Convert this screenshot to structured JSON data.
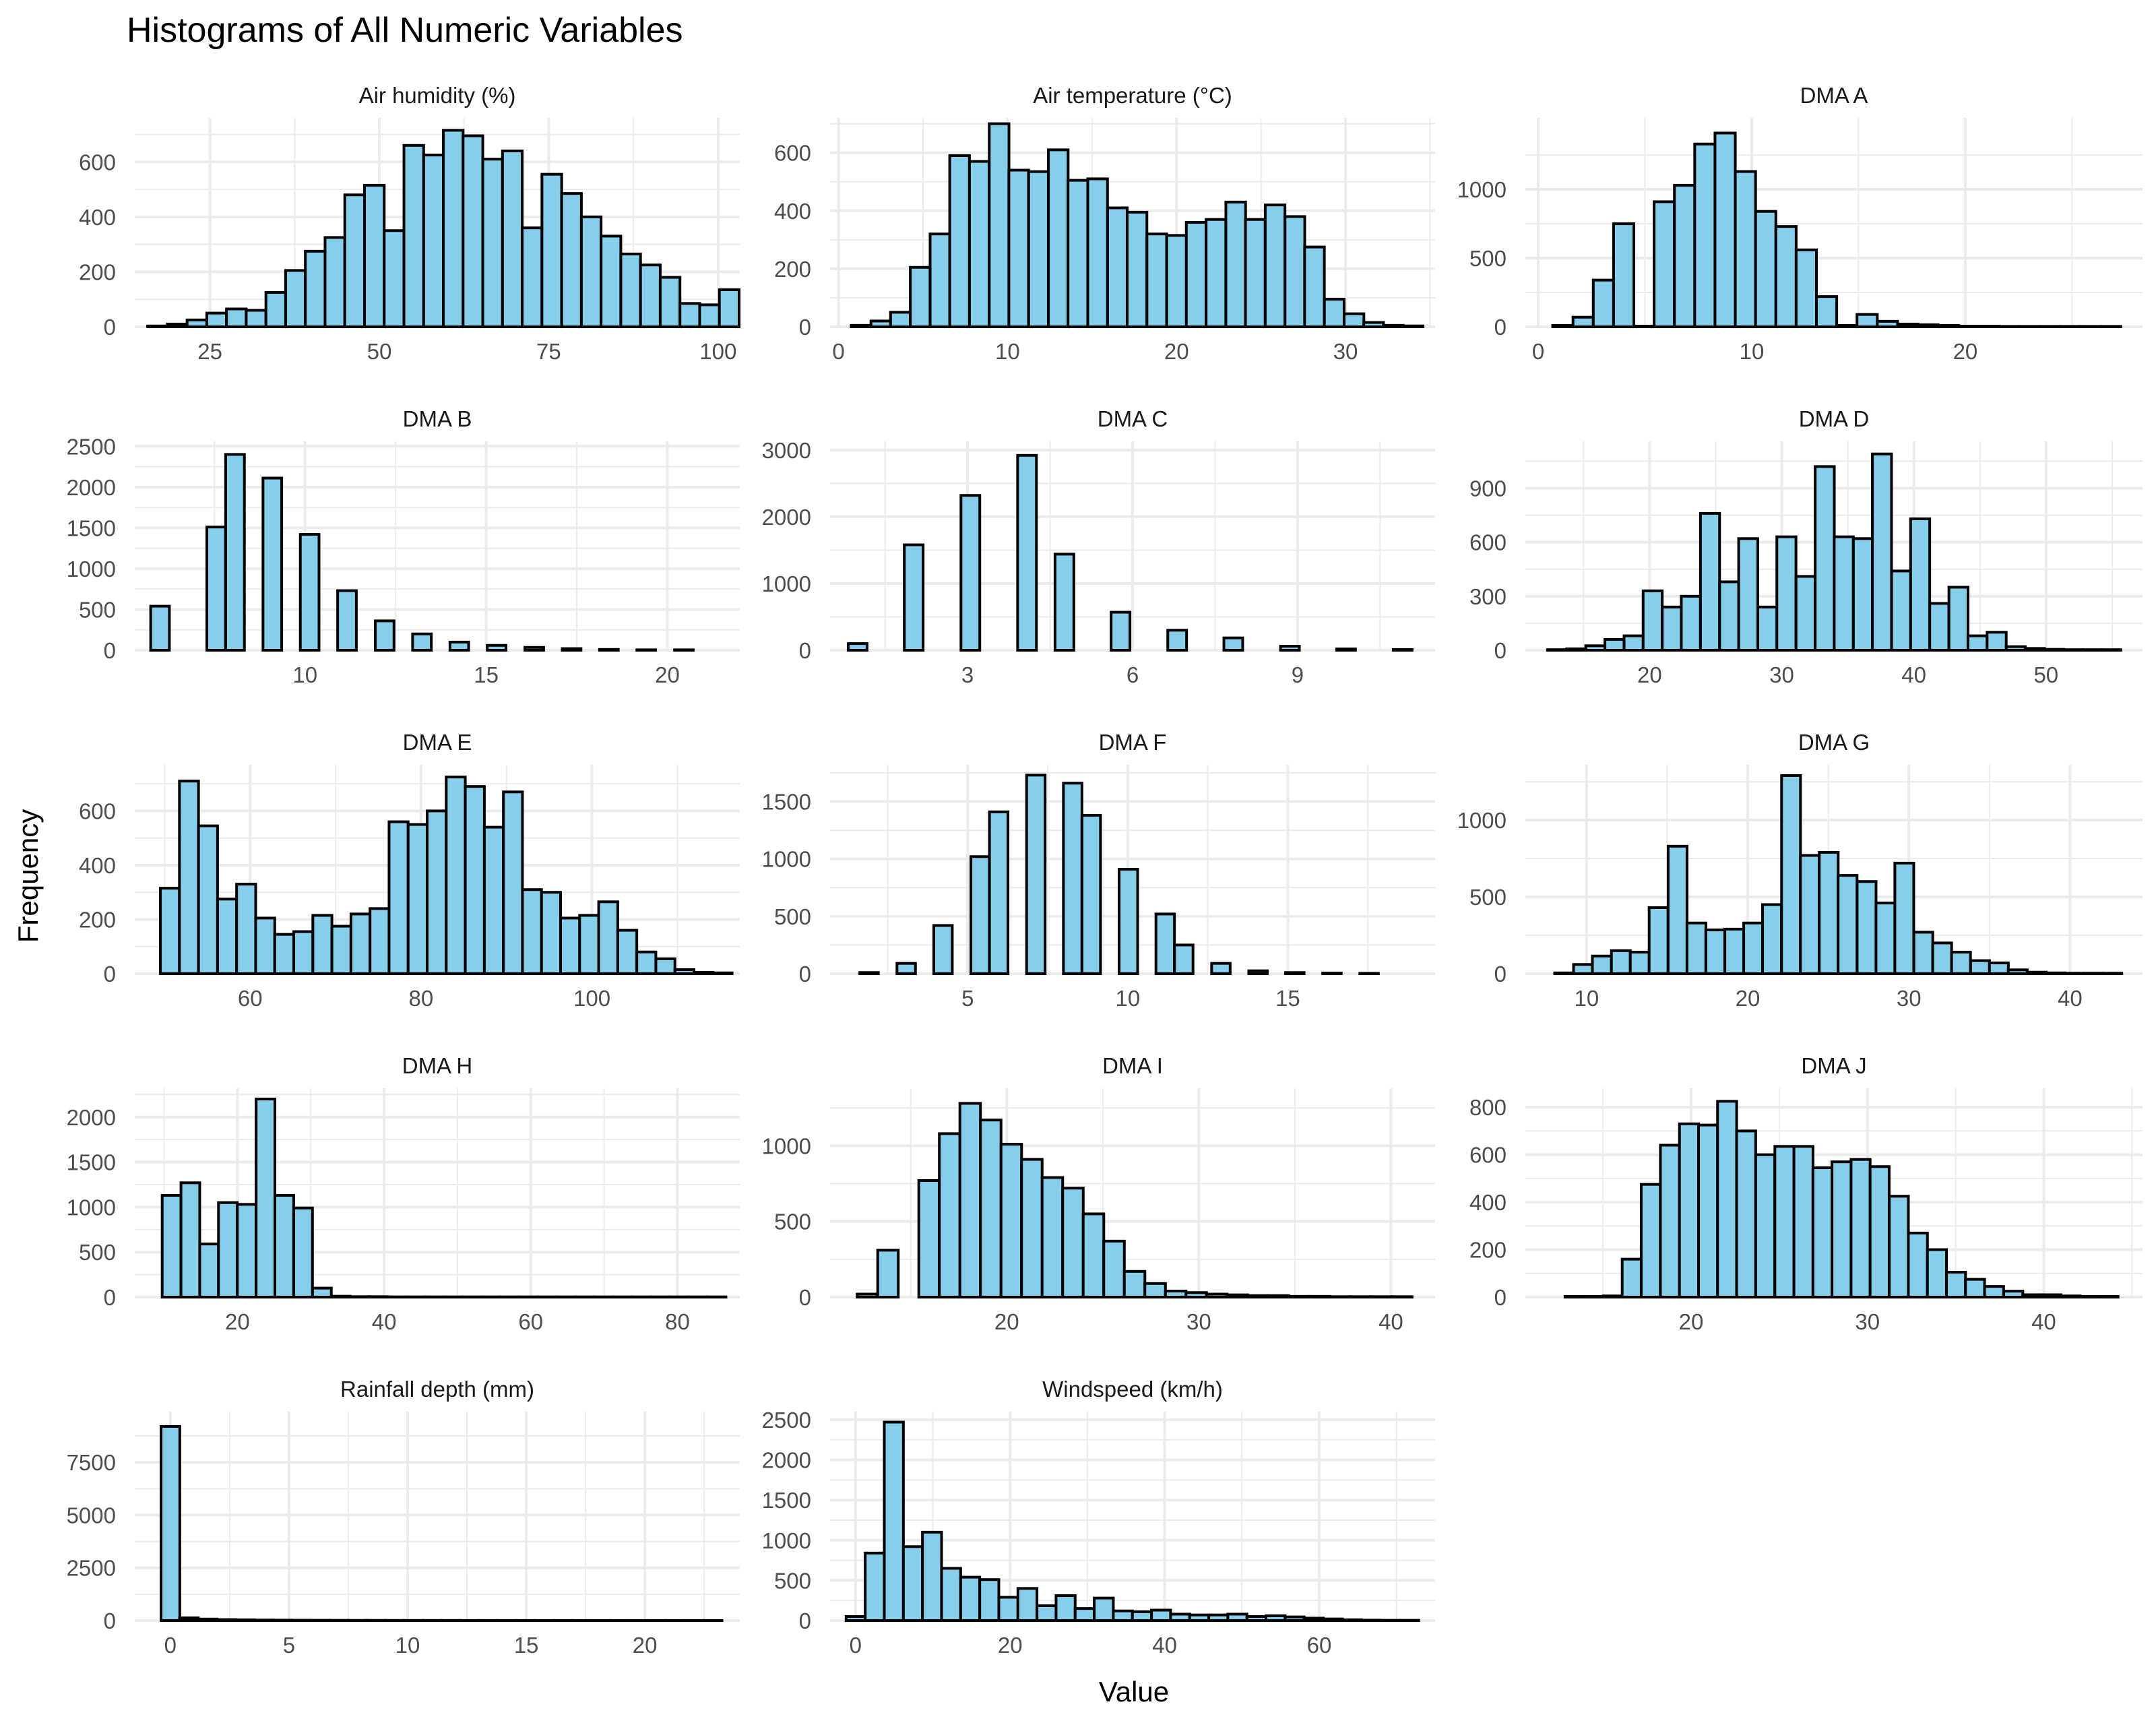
{
  "figure": {
    "title": "Histograms of All Numeric Variables",
    "xlabel": "Value",
    "ylabel": "Frequency",
    "colors": {
      "bar_fill": "#87CEEB",
      "bar_stroke": "#000000",
      "grid": "#EBEBEB"
    }
  },
  "chart_data": [
    {
      "type": "bar",
      "title": "Air humidity (%)",
      "xlim": [
        13.9,
        103.2
      ],
      "ylim": [
        0,
        760
      ],
      "x_ticks": [
        25,
        50,
        75,
        100
      ],
      "y_ticks": [
        0,
        200,
        400,
        600
      ],
      "bin_width": 2.91,
      "bin_starts": [
        15.8,
        18.71,
        21.62,
        24.53,
        27.44,
        30.35,
        33.26,
        36.17,
        39.08,
        41.99,
        44.9,
        47.81,
        50.72,
        53.63,
        56.54,
        59.45,
        62.36,
        65.27,
        68.18,
        71.09,
        74.0,
        76.91,
        79.82,
        82.73,
        85.64,
        88.55,
        91.46,
        94.37,
        97.28,
        100.19
      ],
      "values": [
        3,
        10,
        25,
        50,
        65,
        60,
        125,
        205,
        275,
        325,
        480,
        515,
        350,
        660,
        625,
        715,
        695,
        610,
        640,
        360,
        555,
        485,
        400,
        330,
        265,
        225,
        180,
        85,
        80,
        135
      ]
    },
    {
      "type": "bar",
      "title": "Air temperature (°C)",
      "xlim": [
        -0.5,
        35.3
      ],
      "ylim": [
        0,
        720
      ],
      "x_ticks": [
        0,
        10,
        20,
        30
      ],
      "y_ticks": [
        0,
        200,
        400,
        600
      ],
      "bin_width": 1.167,
      "bin_starts": [
        0.75,
        1.92,
        3.08,
        4.25,
        5.42,
        6.58,
        7.75,
        8.92,
        10.08,
        11.25,
        12.42,
        13.58,
        14.75,
        15.92,
        17.08,
        18.25,
        19.42,
        20.58,
        21.75,
        22.92,
        24.08,
        25.25,
        26.42,
        27.58,
        28.75,
        29.92,
        31.08,
        32.25,
        33.42,
        34.58
      ],
      "values": [
        5,
        20,
        50,
        205,
        320,
        590,
        570,
        700,
        540,
        535,
        610,
        505,
        510,
        410,
        395,
        320,
        315,
        360,
        370,
        430,
        370,
        420,
        380,
        275,
        95,
        45,
        15,
        5,
        3,
        0
      ]
    },
    {
      "type": "bar",
      "title": "DMA A",
      "xlim": [
        -0.6,
        28.3
      ],
      "ylim": [
        0,
        1520
      ],
      "x_ticks": [
        0,
        10,
        20
      ],
      "y_ticks": [
        0,
        500,
        1000
      ],
      "bin_width": 0.95,
      "bin_starts": [
        0.68,
        1.63,
        2.58,
        3.53,
        4.48,
        5.43,
        6.38,
        7.33,
        8.28,
        9.23,
        10.18,
        11.13,
        12.08,
        13.03,
        13.98,
        14.93,
        15.88,
        16.83,
        17.78,
        18.73,
        19.68,
        20.63,
        21.58,
        22.53,
        23.48,
        24.43,
        25.38,
        26.33
      ],
      "values": [
        10,
        70,
        340,
        750,
        5,
        910,
        1030,
        1330,
        1410,
        1130,
        840,
        730,
        560,
        220,
        10,
        90,
        40,
        20,
        15,
        10,
        5,
        5,
        3,
        3,
        3,
        3,
        3,
        3
      ]
    },
    {
      "type": "bar",
      "title": "DMA B",
      "xlim": [
        5.3,
        22.0
      ],
      "ylim": [
        0,
        2560
      ],
      "x_ticks": [
        10,
        15,
        20
      ],
      "y_ticks": [
        0,
        500,
        1000,
        1500,
        2000,
        2500
      ],
      "bin_width": 0.516,
      "bin_starts": [
        5.74,
        6.26,
        6.77,
        7.29,
        7.81,
        8.32,
        8.84,
        9.35,
        9.87,
        10.39,
        10.9,
        11.42,
        11.94,
        12.45,
        12.97,
        13.48,
        14.0,
        14.52,
        15.03,
        15.55,
        16.07,
        16.58,
        17.1,
        17.61,
        18.13,
        18.65,
        19.16,
        19.68,
        20.2,
        20.71
      ],
      "values": [
        540,
        0,
        0,
        1510,
        2400,
        0,
        2110,
        0,
        1420,
        0,
        730,
        0,
        360,
        0,
        200,
        0,
        100,
        0,
        60,
        0,
        35,
        0,
        20,
        0,
        10,
        0,
        5,
        0,
        5,
        0
      ]
    },
    {
      "type": "bar",
      "title": "DMA C",
      "xlim": [
        0.5,
        11.5
      ],
      "ylim": [
        0,
        3130
      ],
      "x_ticks": [
        3,
        6,
        9
      ],
      "y_ticks": [
        0,
        1000,
        2000,
        3000
      ],
      "bin_width": 0.342,
      "bin_starts": [
        0.83,
        1.17,
        1.51,
        1.85,
        2.2,
        2.54,
        2.88,
        3.22,
        3.56,
        3.91,
        4.25,
        4.59,
        4.93,
        5.27,
        5.61,
        5.96,
        6.3,
        6.64,
        6.98,
        7.32,
        7.66,
        8.01,
        8.35,
        8.69,
        9.03,
        9.37,
        9.71,
        10.06,
        10.4,
        10.74
      ],
      "values": [
        100,
        0,
        0,
        1580,
        0,
        0,
        2320,
        0,
        0,
        2920,
        0,
        1440,
        0,
        0,
        570,
        0,
        0,
        300,
        0,
        0,
        185,
        0,
        0,
        60,
        0,
        0,
        20,
        0,
        0,
        10
      ]
    },
    {
      "type": "bar",
      "title": "DMA D",
      "xlim": [
        10.6,
        57.3
      ],
      "ylim": [
        0,
        1160
      ],
      "x_ticks": [
        20,
        30,
        40,
        50
      ],
      "y_ticks": [
        0,
        300,
        600,
        900
      ],
      "bin_width": 1.446,
      "bin_starts": [
        12.28,
        13.73,
        15.17,
        16.62,
        18.07,
        19.51,
        20.96,
        22.4,
        23.85,
        25.3,
        26.74,
        28.19,
        29.63,
        31.08,
        32.53,
        33.97,
        35.42,
        36.86,
        38.31,
        39.75,
        41.2,
        42.65,
        44.09,
        45.54,
        46.98,
        48.43,
        49.88,
        51.32,
        52.77,
        54.21
      ],
      "values": [
        3,
        8,
        25,
        60,
        80,
        330,
        240,
        300,
        760,
        380,
        620,
        240,
        630,
        410,
        1020,
        630,
        620,
        1090,
        440,
        730,
        260,
        350,
        80,
        100,
        20,
        10,
        5,
        3,
        3,
        3
      ]
    },
    {
      "type": "bar",
      "title": "DMA E",
      "xlim": [
        46.5,
        117.3
      ],
      "ylim": [
        0,
        770
      ],
      "x_ticks": [
        60,
        80,
        100
      ],
      "y_ticks": [
        0,
        200,
        400,
        600
      ],
      "bin_width": 2.23,
      "bin_starts": [
        49.5,
        51.73,
        53.96,
        56.19,
        58.42,
        60.65,
        62.88,
        65.11,
        67.34,
        69.57,
        71.8,
        74.03,
        76.26,
        78.49,
        80.72,
        82.95,
        85.18,
        87.41,
        89.64,
        91.87,
        94.1,
        96.33,
        98.56,
        100.79,
        103.02,
        105.25,
        107.48,
        109.71,
        111.94,
        114.17
      ],
      "values": [
        315,
        710,
        545,
        275,
        330,
        205,
        145,
        155,
        215,
        175,
        220,
        240,
        560,
        550,
        600,
        725,
        690,
        540,
        670,
        310,
        300,
        205,
        215,
        265,
        160,
        80,
        55,
        15,
        5,
        3
      ]
    },
    {
      "type": "bar",
      "title": "DMA F",
      "xlim": [
        0.7,
        19.6
      ],
      "ylim": [
        0,
        1820
      ],
      "x_ticks": [
        5,
        10,
        15
      ],
      "y_ticks": [
        0,
        500,
        1000,
        1500
      ],
      "bin_width": 0.578,
      "bin_starts": [
        1.63,
        2.21,
        2.79,
        3.37,
        3.94,
        4.52,
        5.1,
        5.68,
        6.26,
        6.84,
        7.41,
        7.99,
        8.57,
        9.15,
        9.73,
        10.31,
        10.88,
        11.46,
        12.04,
        12.62,
        13.2,
        13.78,
        14.35,
        14.93,
        15.51,
        16.09,
        16.67,
        17.25,
        17.82,
        18.4
      ],
      "values": [
        10,
        0,
        90,
        0,
        420,
        0,
        1020,
        1410,
        0,
        1730,
        0,
        1660,
        1380,
        0,
        910,
        0,
        520,
        250,
        0,
        90,
        0,
        25,
        0,
        10,
        0,
        5,
        0,
        3,
        0,
        0
      ]
    },
    {
      "type": "bar",
      "title": "DMA G",
      "xlim": [
        6.2,
        44.5
      ],
      "ylim": [
        0,
        1360
      ],
      "x_ticks": [
        10,
        20,
        30,
        40
      ],
      "y_ticks": [
        0,
        500,
        1000
      ],
      "bin_width": 1.173,
      "bin_starts": [
        8.02,
        9.19,
        10.36,
        11.54,
        12.71,
        13.88,
        15.06,
        16.23,
        17.4,
        18.58,
        19.75,
        20.92,
        22.1,
        23.27,
        24.44,
        25.61,
        26.79,
        27.96,
        29.13,
        30.31,
        31.48,
        32.65,
        33.83,
        35.0,
        36.17,
        37.35,
        38.52,
        39.69,
        40.87,
        42.04
      ],
      "values": [
        5,
        60,
        115,
        150,
        140,
        430,
        830,
        330,
        285,
        290,
        330,
        450,
        1290,
        770,
        790,
        640,
        600,
        460,
        720,
        270,
        200,
        140,
        85,
        70,
        25,
        10,
        5,
        3,
        3,
        3
      ]
    },
    {
      "type": "bar",
      "title": "DMA H",
      "xlim": [
        6.0,
        88.5
      ],
      "ylim": [
        0,
        2320
      ],
      "x_ticks": [
        20,
        40,
        60,
        80
      ],
      "y_ticks": [
        0,
        500,
        1000,
        1500,
        2000
      ],
      "bin_width": 2.562,
      "bin_starts": [
        9.74,
        12.3,
        14.86,
        17.42,
        19.99,
        22.55,
        25.11,
        27.67,
        30.24,
        32.8,
        35.36,
        37.92,
        40.49,
        43.05,
        45.61,
        48.17,
        50.74,
        53.3,
        55.86,
        58.42,
        60.99,
        63.55,
        66.11,
        68.67,
        71.24,
        73.8,
        76.36,
        78.92,
        81.49,
        84.05
      ],
      "values": [
        1130,
        1270,
        590,
        1050,
        1030,
        2200,
        1130,
        990,
        100,
        10,
        5,
        5,
        3,
        3,
        3,
        3,
        3,
        3,
        3,
        3,
        3,
        3,
        3,
        3,
        3,
        3,
        3,
        3,
        3,
        3
      ]
    },
    {
      "type": "bar",
      "title": "DMA I",
      "xlim": [
        10.8,
        42.3
      ],
      "ylim": [
        0,
        1380
      ],
      "x_ticks": [
        20,
        30,
        40
      ],
      "y_ticks": [
        0,
        500,
        1000
      ],
      "bin_width": 1.071,
      "bin_starts": [
        12.21,
        13.28,
        14.35,
        15.42,
        16.49,
        17.56,
        18.63,
        19.7,
        20.77,
        21.84,
        22.91,
        23.98,
        25.05,
        26.12,
        27.19,
        28.26,
        29.33,
        30.4,
        31.47,
        32.54,
        33.61,
        34.68,
        35.75,
        36.82,
        37.89,
        38.96,
        40.03,
        41.1,
        42.17,
        43.24
      ],
      "values": [
        20,
        310,
        0,
        770,
        1080,
        1280,
        1170,
        1010,
        910,
        790,
        720,
        550,
        370,
        170,
        90,
        40,
        30,
        20,
        15,
        10,
        10,
        5,
        5,
        3,
        3,
        3,
        3,
        0,
        0,
        0
      ]
    },
    {
      "type": "bar",
      "title": "DMA J",
      "xlim": [
        10.6,
        45.6
      ],
      "ylim": [
        0,
        880
      ],
      "x_ticks": [
        20,
        30,
        40
      ],
      "y_ticks": [
        0,
        200,
        400,
        600,
        800
      ],
      "bin_width": 1.082,
      "bin_starts": [
        12.85,
        13.93,
        15.01,
        16.09,
        17.17,
        18.26,
        19.34,
        20.42,
        21.5,
        22.58,
        23.66,
        24.75,
        25.83,
        26.91,
        27.99,
        29.07,
        30.15,
        31.24,
        32.32,
        33.4,
        34.48,
        35.56,
        36.64,
        37.73,
        38.81,
        39.89,
        40.97,
        42.05,
        43.13,
        44.22
      ],
      "values": [
        3,
        3,
        5,
        160,
        475,
        640,
        730,
        725,
        825,
        700,
        600,
        635,
        635,
        545,
        570,
        580,
        550,
        425,
        270,
        200,
        105,
        75,
        45,
        25,
        10,
        10,
        5,
        3,
        3,
        0
      ]
    },
    {
      "type": "bar",
      "title": "Rainfall depth (mm)",
      "xlim": [
        -1.5,
        24.0
      ],
      "ylim": [
        0,
        9900
      ],
      "x_ticks": [
        0,
        5,
        10,
        15,
        20
      ],
      "y_ticks": [
        0,
        2500,
        5000,
        7500
      ],
      "bin_width": 0.788,
      "bin_starts": [
        -0.39,
        0.39,
        1.18,
        1.97,
        2.76,
        3.55,
        4.33,
        5.12,
        5.91,
        6.7,
        7.49,
        8.28,
        9.06,
        9.85,
        10.64,
        11.43,
        12.22,
        13.0,
        13.79,
        14.58,
        15.37,
        16.16,
        16.94,
        17.73,
        18.52,
        19.31,
        20.1,
        20.88,
        21.67,
        22.46
      ],
      "values": [
        9200,
        130,
        70,
        45,
        35,
        25,
        20,
        15,
        12,
        10,
        8,
        8,
        6,
        5,
        5,
        5,
        4,
        4,
        4,
        3,
        3,
        3,
        3,
        3,
        3,
        3,
        3,
        3,
        3,
        3
      ]
    },
    {
      "type": "bar",
      "title": "Windspeed (km/h)",
      "xlim": [
        -3.3,
        75.0
      ],
      "ylim": [
        0,
        2600
      ],
      "x_ticks": [
        0,
        20,
        40,
        60
      ],
      "y_ticks": [
        0,
        500,
        1000,
        1500,
        2000,
        2500
      ],
      "bin_width": 2.47,
      "bin_starts": [
        -1.22,
        1.25,
        3.72,
        6.19,
        8.66,
        11.13,
        13.6,
        16.07,
        18.54,
        21.01,
        23.48,
        25.95,
        28.42,
        30.89,
        33.36,
        35.83,
        38.3,
        40.77,
        43.24,
        45.71,
        48.18,
        50.65,
        53.12,
        55.59,
        58.06,
        60.53,
        63.0,
        65.47,
        67.94,
        70.41
      ],
      "values": [
        50,
        840,
        2470,
        920,
        1100,
        650,
        540,
        510,
        290,
        400,
        185,
        310,
        150,
        280,
        120,
        110,
        130,
        80,
        70,
        70,
        80,
        50,
        60,
        45,
        30,
        20,
        10,
        5,
        3,
        3
      ]
    }
  ]
}
